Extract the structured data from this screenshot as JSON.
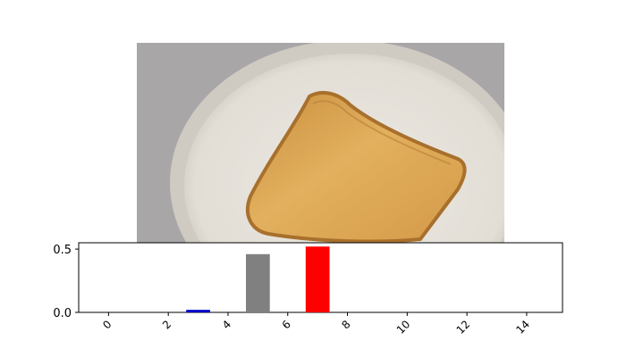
{
  "image_panel": {
    "description_icon": "toast-on-plate-photo"
  },
  "chart_data": {
    "type": "bar",
    "title": "",
    "xlabel": "",
    "ylabel": "",
    "x": [
      3,
      5,
      7
    ],
    "values": [
      0.02,
      0.46,
      0.52
    ],
    "bar_colors": [
      "#0000c8",
      "#808080",
      "#ff0000"
    ],
    "xlim": [
      -1,
      15.2
    ],
    "ylim": [
      0,
      0.55
    ],
    "xticks": [
      0,
      2,
      4,
      6,
      8,
      10,
      12,
      14
    ],
    "xtick_labels": [
      "0",
      "2",
      "4",
      "6",
      "8",
      "10",
      "12",
      "14"
    ],
    "xtick_rotation_deg": 45,
    "yticks": [
      0.0,
      0.5
    ],
    "ytick_labels": [
      "0.0",
      "0.5"
    ],
    "grid": false,
    "legend": "none"
  }
}
